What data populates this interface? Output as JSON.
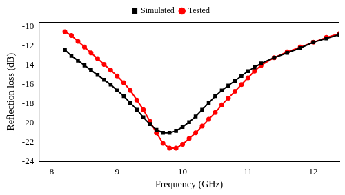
{
  "chart_data": {
    "type": "line",
    "x_label": "Frequency (GHz)",
    "y_label": "Reflection loss (dB)",
    "xlim": [
      7.8,
      12.4
    ],
    "xticks": [
      8,
      9,
      10,
      11,
      12
    ],
    "ylim": [
      -24,
      -9.5
    ],
    "yticks": [
      -24,
      -22,
      -20,
      -18,
      -16,
      -14,
      -12,
      -10
    ],
    "grid": false,
    "legend": "top",
    "series": [
      {
        "name": "Simulated",
        "color": "#000000",
        "marker": "square",
        "line_style": "solid",
        "x": [
          8.2,
          8.3,
          8.4,
          8.5,
          8.6,
          8.7,
          8.8,
          8.9,
          9.0,
          9.1,
          9.2,
          9.3,
          9.4,
          9.5,
          9.6,
          9.7,
          9.8,
          9.9,
          10.0,
          10.1,
          10.2,
          10.3,
          10.4,
          10.5,
          10.6,
          10.7,
          10.8,
          10.9,
          11.0,
          11.1,
          11.2,
          11.4,
          11.6,
          11.8,
          12.0,
          12.2,
          12.4
        ],
        "values": [
          -12.4,
          -13.0,
          -13.5,
          -14.0,
          -14.5,
          -15.0,
          -15.5,
          -16.0,
          -16.6,
          -17.2,
          -17.9,
          -18.6,
          -19.4,
          -20.1,
          -20.7,
          -21.0,
          -21.0,
          -20.8,
          -20.4,
          -19.9,
          -19.3,
          -18.6,
          -17.9,
          -17.2,
          -16.6,
          -16.1,
          -15.6,
          -15.1,
          -14.6,
          -14.2,
          -13.8,
          -13.2,
          -12.7,
          -12.2,
          -11.6,
          -11.2,
          -10.8
        ]
      },
      {
        "name": "Tested",
        "color": "#ff0000",
        "marker": "circle",
        "line_style": "solid",
        "x": [
          8.2,
          8.3,
          8.4,
          8.5,
          8.6,
          8.7,
          8.8,
          8.9,
          9.0,
          9.1,
          9.2,
          9.3,
          9.4,
          9.5,
          9.6,
          9.7,
          9.8,
          9.9,
          10.0,
          10.1,
          10.2,
          10.3,
          10.4,
          10.5,
          10.6,
          10.7,
          10.8,
          10.9,
          11.0,
          11.1,
          11.2,
          11.4,
          11.6,
          11.8,
          12.0,
          12.2,
          12.4
        ],
        "values": [
          -10.5,
          -10.9,
          -11.5,
          -12.1,
          -12.7,
          -13.3,
          -13.9,
          -14.5,
          -15.1,
          -15.8,
          -16.6,
          -17.6,
          -18.6,
          -19.8,
          -21.0,
          -22.1,
          -22.6,
          -22.6,
          -22.2,
          -21.6,
          -21.0,
          -20.3,
          -19.6,
          -18.9,
          -18.1,
          -17.4,
          -16.7,
          -16.0,
          -15.3,
          -14.6,
          -14.0,
          -13.2,
          -12.6,
          -12.1,
          -11.6,
          -11.1,
          -10.7
        ]
      }
    ]
  }
}
